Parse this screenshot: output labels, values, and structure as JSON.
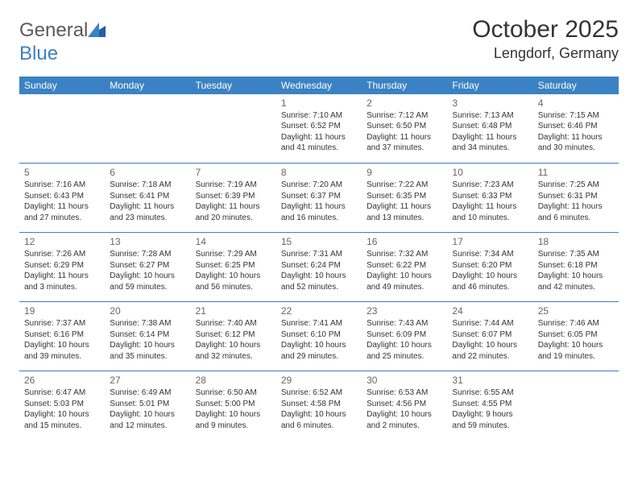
{
  "brand": {
    "part1": "General",
    "part2": "Blue"
  },
  "title": "October 2025",
  "location": "Lengdorf, Germany",
  "colors": {
    "header_bg": "#3b82c4",
    "header_fg": "#ffffff",
    "border": "#3b7fc4",
    "text": "#333333",
    "daynum": "#666666"
  },
  "weekdays": [
    "Sunday",
    "Monday",
    "Tuesday",
    "Wednesday",
    "Thursday",
    "Friday",
    "Saturday"
  ],
  "weeks": [
    [
      {
        "day": "",
        "sunrise": "",
        "sunset": "",
        "daylight": ""
      },
      {
        "day": "",
        "sunrise": "",
        "sunset": "",
        "daylight": ""
      },
      {
        "day": "",
        "sunrise": "",
        "sunset": "",
        "daylight": ""
      },
      {
        "day": "1",
        "sunrise": "Sunrise: 7:10 AM",
        "sunset": "Sunset: 6:52 PM",
        "daylight": "Daylight: 11 hours and 41 minutes."
      },
      {
        "day": "2",
        "sunrise": "Sunrise: 7:12 AM",
        "sunset": "Sunset: 6:50 PM",
        "daylight": "Daylight: 11 hours and 37 minutes."
      },
      {
        "day": "3",
        "sunrise": "Sunrise: 7:13 AM",
        "sunset": "Sunset: 6:48 PM",
        "daylight": "Daylight: 11 hours and 34 minutes."
      },
      {
        "day": "4",
        "sunrise": "Sunrise: 7:15 AM",
        "sunset": "Sunset: 6:46 PM",
        "daylight": "Daylight: 11 hours and 30 minutes."
      }
    ],
    [
      {
        "day": "5",
        "sunrise": "Sunrise: 7:16 AM",
        "sunset": "Sunset: 6:43 PM",
        "daylight": "Daylight: 11 hours and 27 minutes."
      },
      {
        "day": "6",
        "sunrise": "Sunrise: 7:18 AM",
        "sunset": "Sunset: 6:41 PM",
        "daylight": "Daylight: 11 hours and 23 minutes."
      },
      {
        "day": "7",
        "sunrise": "Sunrise: 7:19 AM",
        "sunset": "Sunset: 6:39 PM",
        "daylight": "Daylight: 11 hours and 20 minutes."
      },
      {
        "day": "8",
        "sunrise": "Sunrise: 7:20 AM",
        "sunset": "Sunset: 6:37 PM",
        "daylight": "Daylight: 11 hours and 16 minutes."
      },
      {
        "day": "9",
        "sunrise": "Sunrise: 7:22 AM",
        "sunset": "Sunset: 6:35 PM",
        "daylight": "Daylight: 11 hours and 13 minutes."
      },
      {
        "day": "10",
        "sunrise": "Sunrise: 7:23 AM",
        "sunset": "Sunset: 6:33 PM",
        "daylight": "Daylight: 11 hours and 10 minutes."
      },
      {
        "day": "11",
        "sunrise": "Sunrise: 7:25 AM",
        "sunset": "Sunset: 6:31 PM",
        "daylight": "Daylight: 11 hours and 6 minutes."
      }
    ],
    [
      {
        "day": "12",
        "sunrise": "Sunrise: 7:26 AM",
        "sunset": "Sunset: 6:29 PM",
        "daylight": "Daylight: 11 hours and 3 minutes."
      },
      {
        "day": "13",
        "sunrise": "Sunrise: 7:28 AM",
        "sunset": "Sunset: 6:27 PM",
        "daylight": "Daylight: 10 hours and 59 minutes."
      },
      {
        "day": "14",
        "sunrise": "Sunrise: 7:29 AM",
        "sunset": "Sunset: 6:25 PM",
        "daylight": "Daylight: 10 hours and 56 minutes."
      },
      {
        "day": "15",
        "sunrise": "Sunrise: 7:31 AM",
        "sunset": "Sunset: 6:24 PM",
        "daylight": "Daylight: 10 hours and 52 minutes."
      },
      {
        "day": "16",
        "sunrise": "Sunrise: 7:32 AM",
        "sunset": "Sunset: 6:22 PM",
        "daylight": "Daylight: 10 hours and 49 minutes."
      },
      {
        "day": "17",
        "sunrise": "Sunrise: 7:34 AM",
        "sunset": "Sunset: 6:20 PM",
        "daylight": "Daylight: 10 hours and 46 minutes."
      },
      {
        "day": "18",
        "sunrise": "Sunrise: 7:35 AM",
        "sunset": "Sunset: 6:18 PM",
        "daylight": "Daylight: 10 hours and 42 minutes."
      }
    ],
    [
      {
        "day": "19",
        "sunrise": "Sunrise: 7:37 AM",
        "sunset": "Sunset: 6:16 PM",
        "daylight": "Daylight: 10 hours and 39 minutes."
      },
      {
        "day": "20",
        "sunrise": "Sunrise: 7:38 AM",
        "sunset": "Sunset: 6:14 PM",
        "daylight": "Daylight: 10 hours and 35 minutes."
      },
      {
        "day": "21",
        "sunrise": "Sunrise: 7:40 AM",
        "sunset": "Sunset: 6:12 PM",
        "daylight": "Daylight: 10 hours and 32 minutes."
      },
      {
        "day": "22",
        "sunrise": "Sunrise: 7:41 AM",
        "sunset": "Sunset: 6:10 PM",
        "daylight": "Daylight: 10 hours and 29 minutes."
      },
      {
        "day": "23",
        "sunrise": "Sunrise: 7:43 AM",
        "sunset": "Sunset: 6:09 PM",
        "daylight": "Daylight: 10 hours and 25 minutes."
      },
      {
        "day": "24",
        "sunrise": "Sunrise: 7:44 AM",
        "sunset": "Sunset: 6:07 PM",
        "daylight": "Daylight: 10 hours and 22 minutes."
      },
      {
        "day": "25",
        "sunrise": "Sunrise: 7:46 AM",
        "sunset": "Sunset: 6:05 PM",
        "daylight": "Daylight: 10 hours and 19 minutes."
      }
    ],
    [
      {
        "day": "26",
        "sunrise": "Sunrise: 6:47 AM",
        "sunset": "Sunset: 5:03 PM",
        "daylight": "Daylight: 10 hours and 15 minutes."
      },
      {
        "day": "27",
        "sunrise": "Sunrise: 6:49 AM",
        "sunset": "Sunset: 5:01 PM",
        "daylight": "Daylight: 10 hours and 12 minutes."
      },
      {
        "day": "28",
        "sunrise": "Sunrise: 6:50 AM",
        "sunset": "Sunset: 5:00 PM",
        "daylight": "Daylight: 10 hours and 9 minutes."
      },
      {
        "day": "29",
        "sunrise": "Sunrise: 6:52 AM",
        "sunset": "Sunset: 4:58 PM",
        "daylight": "Daylight: 10 hours and 6 minutes."
      },
      {
        "day": "30",
        "sunrise": "Sunrise: 6:53 AM",
        "sunset": "Sunset: 4:56 PM",
        "daylight": "Daylight: 10 hours and 2 minutes."
      },
      {
        "day": "31",
        "sunrise": "Sunrise: 6:55 AM",
        "sunset": "Sunset: 4:55 PM",
        "daylight": "Daylight: 9 hours and 59 minutes."
      },
      {
        "day": "",
        "sunrise": "",
        "sunset": "",
        "daylight": ""
      }
    ]
  ]
}
